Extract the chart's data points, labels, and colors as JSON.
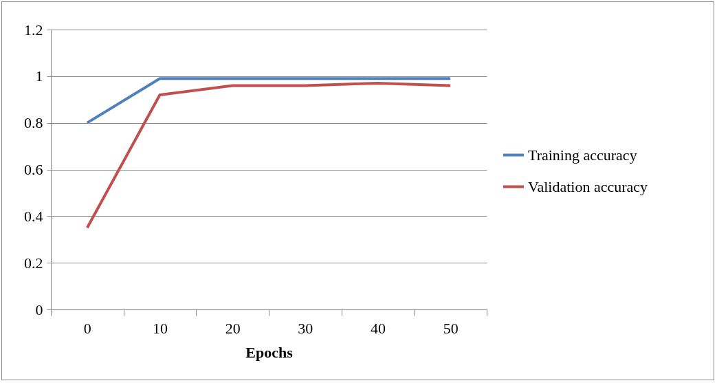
{
  "chart_data": {
    "type": "line",
    "xlabel": "Epochs",
    "categories": [
      "0",
      "10",
      "20",
      "30",
      "40",
      "50"
    ],
    "series": [
      {
        "name": "Training accuracy",
        "color": "#4f81bd",
        "values": [
          0.8,
          0.99,
          0.99,
          0.99,
          0.99,
          0.99
        ]
      },
      {
        "name": "Validation accuracy",
        "color": "#c0504d",
        "values": [
          0.35,
          0.92,
          0.96,
          0.96,
          0.97,
          0.96
        ]
      }
    ],
    "ylim": [
      0,
      1.2
    ],
    "yticks": [
      0,
      0.2,
      0.4,
      0.6,
      0.8,
      1,
      1.2
    ],
    "grid": "y",
    "legend": "right",
    "marker": "none",
    "line_style": "solid"
  }
}
